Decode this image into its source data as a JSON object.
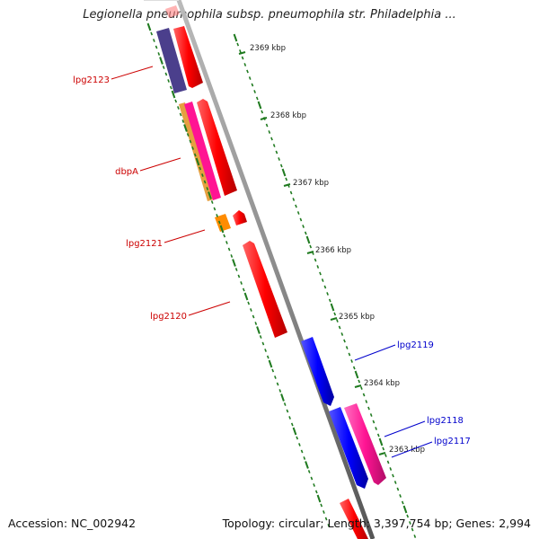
{
  "title": "Legionella pneumophila subsp. pneumophila str. Philadelphia ...",
  "footer": {
    "accession": "Accession: NC_002942",
    "topology": "Topology: circular; Length: 3,397,754 bp; Genes: 2,994"
  },
  "scale_ticks": [
    {
      "kbp": 2369,
      "label": "2369 kbp"
    },
    {
      "kbp": 2368,
      "label": "2368 kbp"
    },
    {
      "kbp": 2367,
      "label": "2367 kbp"
    },
    {
      "kbp": 2366,
      "label": "2366 kbp"
    },
    {
      "kbp": 2365,
      "label": "2365 kbp"
    },
    {
      "kbp": 2364,
      "label": "2364 kbp"
    },
    {
      "kbp": 2363,
      "label": "2363 kbp"
    }
  ],
  "gene_labels": [
    {
      "name": "lpg2123",
      "strand": "reverse",
      "color": "#cc0000"
    },
    {
      "name": "dbpA",
      "strand": "reverse",
      "color": "#cc0000"
    },
    {
      "name": "lpg2121",
      "strand": "reverse",
      "color": "#cc0000"
    },
    {
      "name": "lpg2120",
      "strand": "reverse",
      "color": "#cc0000"
    },
    {
      "name": "lpg2119",
      "strand": "forward",
      "color": "#0000cc"
    },
    {
      "name": "lpg2118",
      "strand": "forward",
      "color": "#0000cc"
    },
    {
      "name": "lpg2117",
      "strand": "forward",
      "color": "#0000cc"
    }
  ],
  "colors": {
    "backbone": "#8c8c8c",
    "tick": "#1f7a1f",
    "reverse_gene": "#ff0000",
    "forward_gene": "#0000ff",
    "purple_feature": "#4b3f8c",
    "magenta_feature": "#ff1493",
    "orange_feature": "#ff8c00"
  }
}
